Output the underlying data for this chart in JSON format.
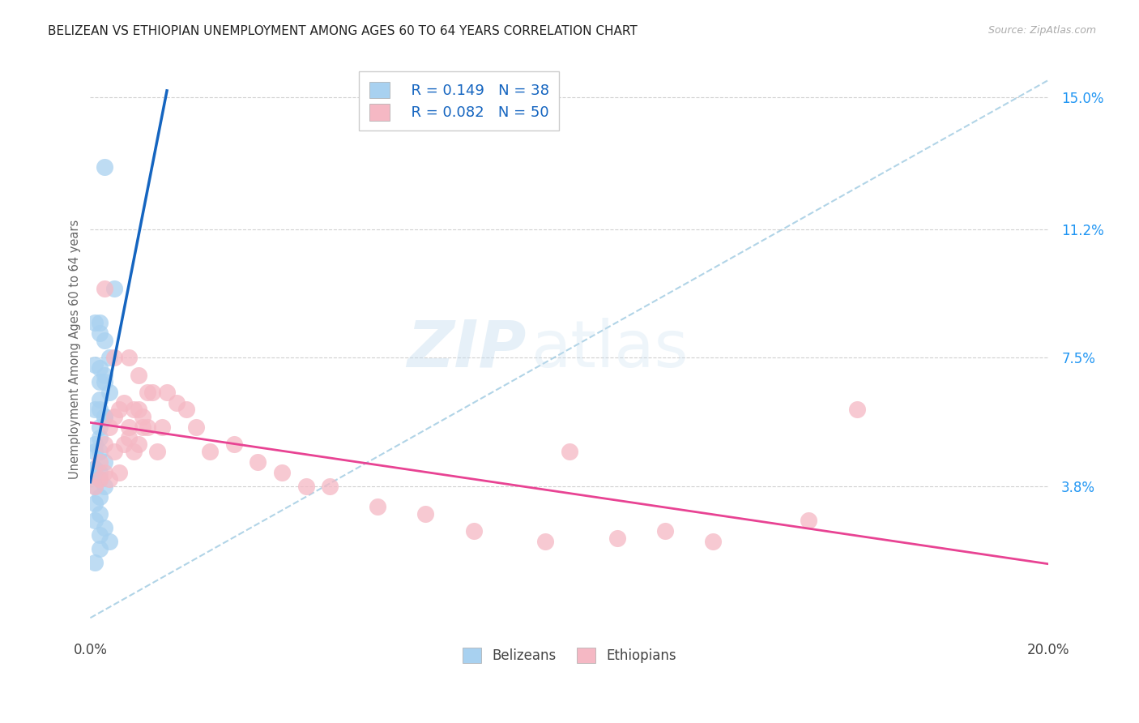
{
  "title": "BELIZEAN VS ETHIOPIAN UNEMPLOYMENT AMONG AGES 60 TO 64 YEARS CORRELATION CHART",
  "source": "Source: ZipAtlas.com",
  "ylabel": "Unemployment Among Ages 60 to 64 years",
  "xlim": [
    0.0,
    0.2
  ],
  "ylim": [
    -0.005,
    0.16
  ],
  "ytick_positions": [
    0.038,
    0.075,
    0.112,
    0.15
  ],
  "ytick_labels": [
    "3.8%",
    "7.5%",
    "11.2%",
    "15.0%"
  ],
  "blue_scatter_color": "#a8d1f0",
  "pink_scatter_color": "#f5b8c4",
  "blue_line_color": "#1565c0",
  "pink_line_color": "#e84393",
  "ref_line_color": "#9ecae1",
  "legend_r_belize": "0.149",
  "legend_n_belize": "38",
  "legend_r_ethiopia": "0.082",
  "legend_n_ethiopia": "50",
  "watermark_zip": "ZIP",
  "watermark_atlas": "atlas",
  "belize_x": [
    0.003,
    0.005,
    0.001,
    0.002,
    0.002,
    0.003,
    0.004,
    0.001,
    0.002,
    0.003,
    0.003,
    0.002,
    0.004,
    0.002,
    0.001,
    0.002,
    0.003,
    0.002,
    0.002,
    0.001,
    0.001,
    0.002,
    0.003,
    0.001,
    0.002,
    0.002,
    0.001,
    0.003,
    0.002,
    0.001,
    0.002,
    0.001,
    0.003,
    0.002,
    0.004,
    0.002,
    0.001,
    0.003
  ],
  "belize_y": [
    0.13,
    0.095,
    0.085,
    0.085,
    0.082,
    0.08,
    0.075,
    0.073,
    0.072,
    0.07,
    0.068,
    0.068,
    0.065,
    0.063,
    0.06,
    0.06,
    0.058,
    0.055,
    0.052,
    0.05,
    0.048,
    0.048,
    0.045,
    0.043,
    0.042,
    0.04,
    0.038,
    0.038,
    0.035,
    0.033,
    0.03,
    0.028,
    0.026,
    0.024,
    0.022,
    0.02,
    0.016,
    0.058
  ],
  "ethiopia_x": [
    0.001,
    0.002,
    0.002,
    0.003,
    0.003,
    0.004,
    0.004,
    0.005,
    0.005,
    0.006,
    0.006,
    0.007,
    0.007,
    0.008,
    0.008,
    0.009,
    0.009,
    0.01,
    0.01,
    0.011,
    0.011,
    0.012,
    0.013,
    0.014,
    0.015,
    0.016,
    0.018,
    0.02,
    0.022,
    0.025,
    0.03,
    0.035,
    0.04,
    0.045,
    0.05,
    0.06,
    0.07,
    0.08,
    0.095,
    0.1,
    0.11,
    0.12,
    0.13,
    0.15,
    0.16,
    0.003,
    0.005,
    0.008,
    0.01,
    0.012
  ],
  "ethiopia_y": [
    0.038,
    0.04,
    0.045,
    0.042,
    0.05,
    0.04,
    0.055,
    0.048,
    0.058,
    0.042,
    0.06,
    0.05,
    0.062,
    0.052,
    0.055,
    0.048,
    0.06,
    0.05,
    0.06,
    0.055,
    0.058,
    0.055,
    0.065,
    0.048,
    0.055,
    0.065,
    0.062,
    0.06,
    0.055,
    0.048,
    0.05,
    0.045,
    0.042,
    0.038,
    0.038,
    0.032,
    0.03,
    0.025,
    0.022,
    0.048,
    0.023,
    0.025,
    0.022,
    0.028,
    0.06,
    0.095,
    0.075,
    0.075,
    0.07,
    0.065
  ]
}
